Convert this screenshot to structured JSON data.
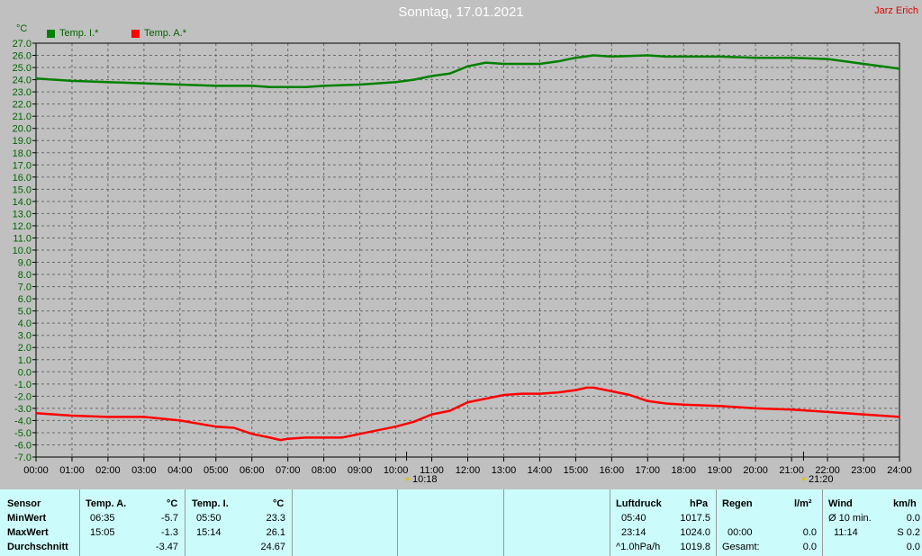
{
  "header": {
    "title": "Sonntag, 17.01.2021",
    "author": "Jarz Erich",
    "unit": "°C"
  },
  "legend": [
    {
      "label": "Temp. I.*",
      "color": "#008000"
    },
    {
      "label": "Temp. A.*",
      "color": "#ff0000"
    }
  ],
  "events": [
    {
      "time": "10:18",
      "hour": 10.3
    },
    {
      "time": "21:20",
      "hour": 21.333
    }
  ],
  "chart_data": {
    "type": "line",
    "title": "Sonntag, 17.01.2021",
    "ylabel": "°C",
    "xlim": [
      0,
      24
    ],
    "ylim": [
      -7,
      27
    ],
    "grid": true,
    "legend_position": "top-left",
    "x_tick_labels": [
      "00:00",
      "01:00",
      "02:00",
      "03:00",
      "04:00",
      "05:00",
      "06:00",
      "07:00",
      "08:00",
      "09:00",
      "10:00",
      "11:00",
      "12:00",
      "13:00",
      "14:00",
      "15:00",
      "16:00",
      "17:00",
      "18:00",
      "19:00",
      "20:00",
      "21:00",
      "22:00",
      "23:00",
      "24:00"
    ],
    "y_tick_labels": [
      "27.0",
      "26.0",
      "25.0",
      "24.0",
      "23.0",
      "22.0",
      "21.0",
      "20.0",
      "19.0",
      "18.0",
      "17.0",
      "16.0",
      "15.0",
      "14.0",
      "13.0",
      "12.0",
      "11.0",
      "10.0",
      "9.0",
      "8.0",
      "7.0",
      "6.0",
      "5.0",
      "4.0",
      "3.0",
      "2.0",
      "1.0",
      "0.0",
      "-1.0",
      "-2.0",
      "-3.0",
      "-4.0",
      "-5.0",
      "-6.0",
      "-7.0"
    ],
    "series": [
      {
        "name": "Temp. I.*",
        "color": "#008000",
        "points": [
          [
            0,
            24.1
          ],
          [
            1,
            23.9
          ],
          [
            2,
            23.8
          ],
          [
            3,
            23.7
          ],
          [
            4,
            23.6
          ],
          [
            5,
            23.5
          ],
          [
            6,
            23.5
          ],
          [
            6.5,
            23.4
          ],
          [
            7,
            23.4
          ],
          [
            7.5,
            23.4
          ],
          [
            8,
            23.5
          ],
          [
            9,
            23.6
          ],
          [
            10,
            23.8
          ],
          [
            10.5,
            24.0
          ],
          [
            11,
            24.3
          ],
          [
            11.5,
            24.5
          ],
          [
            12,
            25.1
          ],
          [
            12.5,
            25.4
          ],
          [
            13,
            25.3
          ],
          [
            14,
            25.3
          ],
          [
            14.5,
            25.5
          ],
          [
            15,
            25.8
          ],
          [
            15.5,
            26.0
          ],
          [
            16,
            25.9
          ],
          [
            17,
            26.0
          ],
          [
            17.5,
            25.9
          ],
          [
            18,
            25.9
          ],
          [
            19,
            25.9
          ],
          [
            20,
            25.8
          ],
          [
            21,
            25.8
          ],
          [
            22,
            25.7
          ],
          [
            22.5,
            25.5
          ],
          [
            23,
            25.3
          ],
          [
            24,
            24.9
          ]
        ]
      },
      {
        "name": "Temp. A.*",
        "color": "#ff0000",
        "points": [
          [
            0,
            -3.4
          ],
          [
            1,
            -3.6
          ],
          [
            2,
            -3.7
          ],
          [
            3,
            -3.7
          ],
          [
            4,
            -4.0
          ],
          [
            5,
            -4.5
          ],
          [
            5.5,
            -4.6
          ],
          [
            6,
            -5.1
          ],
          [
            6.5,
            -5.4
          ],
          [
            6.8,
            -5.6
          ],
          [
            7,
            -5.5
          ],
          [
            7.5,
            -5.4
          ],
          [
            8,
            -5.4
          ],
          [
            8.5,
            -5.4
          ],
          [
            9,
            -5.1
          ],
          [
            9.5,
            -4.8
          ],
          [
            10,
            -4.5
          ],
          [
            10.5,
            -4.1
          ],
          [
            11,
            -3.5
          ],
          [
            11.5,
            -3.2
          ],
          [
            12,
            -2.5
          ],
          [
            12.5,
            -2.2
          ],
          [
            13,
            -1.9
          ],
          [
            13.5,
            -1.8
          ],
          [
            14,
            -1.8
          ],
          [
            14.5,
            -1.7
          ],
          [
            15,
            -1.5
          ],
          [
            15.3,
            -1.3
          ],
          [
            15.5,
            -1.3
          ],
          [
            16,
            -1.6
          ],
          [
            16.5,
            -1.9
          ],
          [
            17,
            -2.4
          ],
          [
            17.5,
            -2.6
          ],
          [
            18,
            -2.7
          ],
          [
            19,
            -2.8
          ],
          [
            20,
            -3.0
          ],
          [
            21,
            -3.1
          ],
          [
            22,
            -3.3
          ],
          [
            23,
            -3.5
          ],
          [
            24,
            -3.7
          ]
        ]
      }
    ]
  },
  "table": {
    "sensor": {
      "header": "Sensor",
      "rows": [
        "MinWert",
        "MaxWert",
        "Durchschnitt"
      ]
    },
    "temp_a": {
      "header": "Temp. A.",
      "unit": "°C",
      "min_time": "06:35",
      "min": "-5.7",
      "max_time": "15:05",
      "max": "-1.3",
      "avg": "-3.47"
    },
    "temp_i": {
      "header": "Temp. I.",
      "unit": "°C",
      "min_time": "05:50",
      "min": "23.3",
      "max_time": "15:14",
      "max": "26.1",
      "avg": "24.67"
    },
    "pressure": {
      "header": "Luftdruck",
      "unit": "hPa",
      "min_time": "05:40",
      "min": "1017.5",
      "max_time": "23:14",
      "max": "1024.0",
      "trend": "^1.0hPa/h",
      "current": "1019.8"
    },
    "rain": {
      "header": "Regen",
      "unit": "l/m²",
      "time": "00:00",
      "value": "0.0",
      "total_label": "Gesamt:",
      "total": "0.0"
    },
    "wind": {
      "header": "Wind",
      "unit": "km/h",
      "avg_label": "Ø 10 min.",
      "avg": "0.0",
      "max_time": "11:14",
      "max": "S 0.2",
      "other": "0.0"
    }
  }
}
